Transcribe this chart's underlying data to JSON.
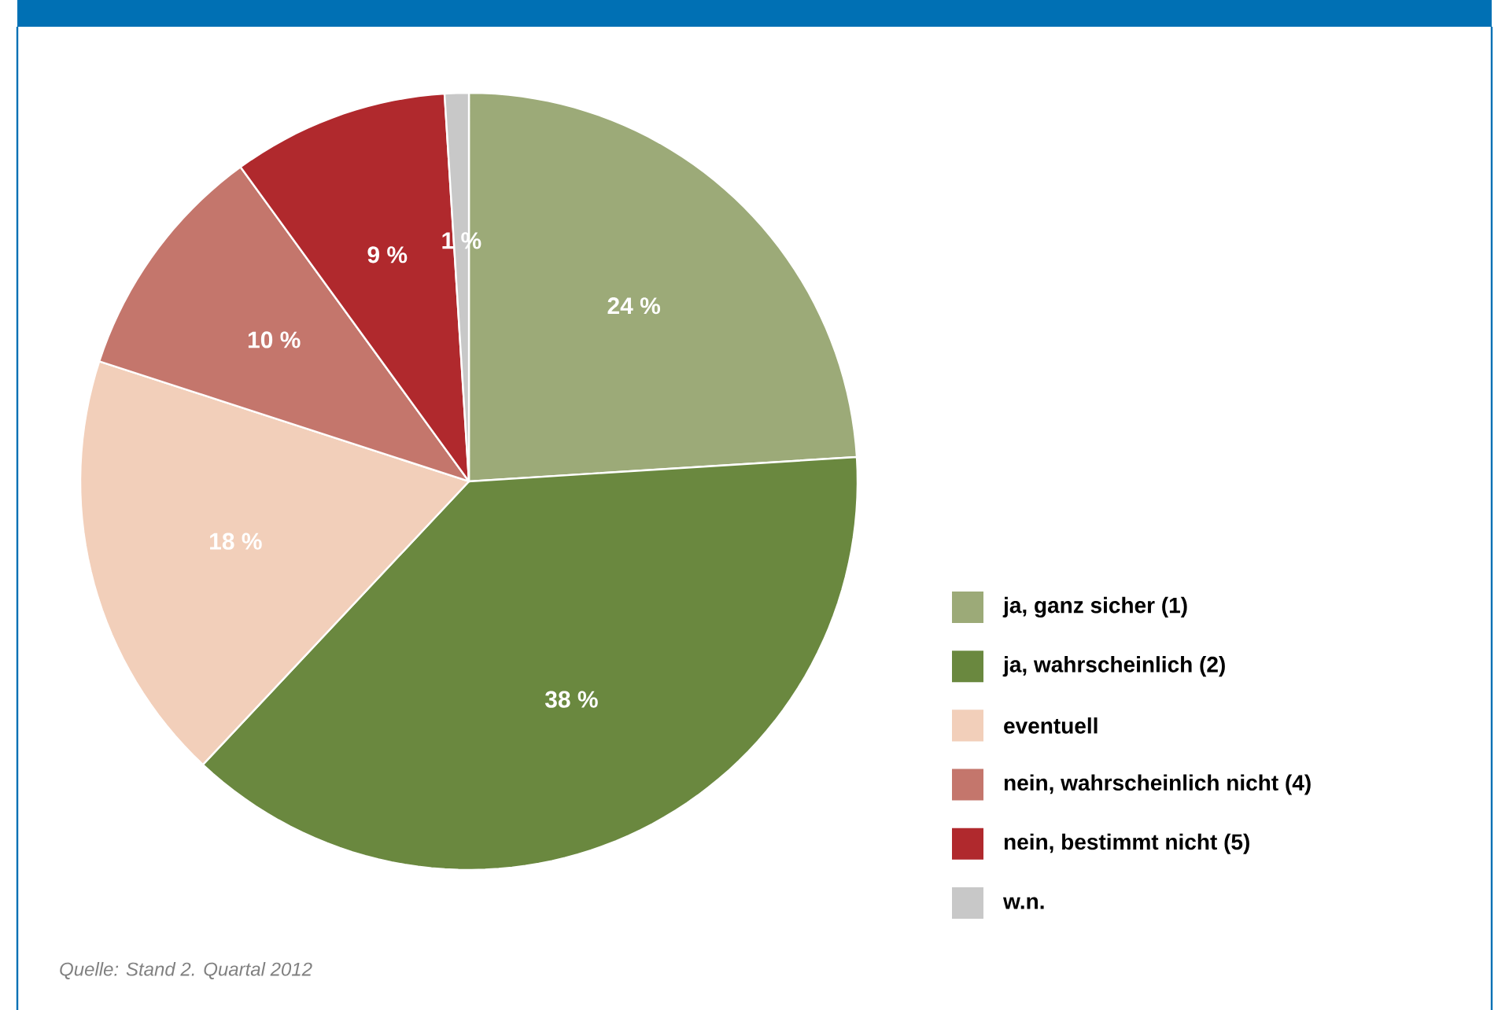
{
  "chart_data": {
    "type": "pie",
    "categories": [
      "ja, ganz sicher (1)",
      "ja, wahrscheinlich (2)",
      "eventuell",
      "nein, wahrscheinlich nicht (4)",
      "nein, bestimmt nicht (5)",
      "w.n."
    ],
    "values": [
      24,
      38,
      18,
      10,
      9,
      1
    ],
    "value_labels": [
      "24 %",
      "38 %",
      "18 %",
      "10 %",
      "9 %",
      "1 %"
    ],
    "colors": [
      "#9caa78",
      "#6a883f",
      "#f2cfba",
      "#c4766c",
      "#b0292d",
      "#c8c8c8"
    ],
    "legend": "right",
    "annotations": [
      "Quelle: Stand 2. Quartal 2012"
    ]
  }
}
